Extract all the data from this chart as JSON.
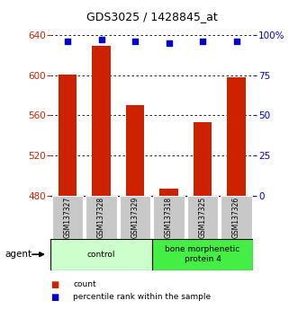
{
  "title": "GDS3025 / 1428845_at",
  "samples": [
    "GSM137327",
    "GSM137328",
    "GSM137329",
    "GSM137318",
    "GSM137325",
    "GSM137326"
  ],
  "counts": [
    601,
    629,
    570,
    487,
    553,
    598
  ],
  "percentiles": [
    96,
    97,
    96,
    95,
    96,
    96
  ],
  "groups": [
    {
      "label": "control",
      "start": 0,
      "end": 3,
      "color": "#ccffcc"
    },
    {
      "label": "bone morphenetic\nprotein 4",
      "start": 3,
      "end": 6,
      "color": "#44ee44"
    }
  ],
  "ylim_left": [
    480,
    640
  ],
  "yticks_left": [
    480,
    520,
    560,
    600,
    640
  ],
  "ylim_right": [
    0,
    100
  ],
  "yticks_right": [
    0,
    25,
    50,
    75,
    100
  ],
  "yticklabels_right": [
    "0",
    "25",
    "50",
    "75",
    "100%"
  ],
  "bar_color": "#cc2200",
  "dot_color": "#0000cc",
  "bar_width": 0.55,
  "left_axis_color": "#cc2200",
  "right_axis_color": "#0000cc",
  "legend_count_color": "#cc2200",
  "legend_pct_color": "#0000cc",
  "agent_label": "agent"
}
